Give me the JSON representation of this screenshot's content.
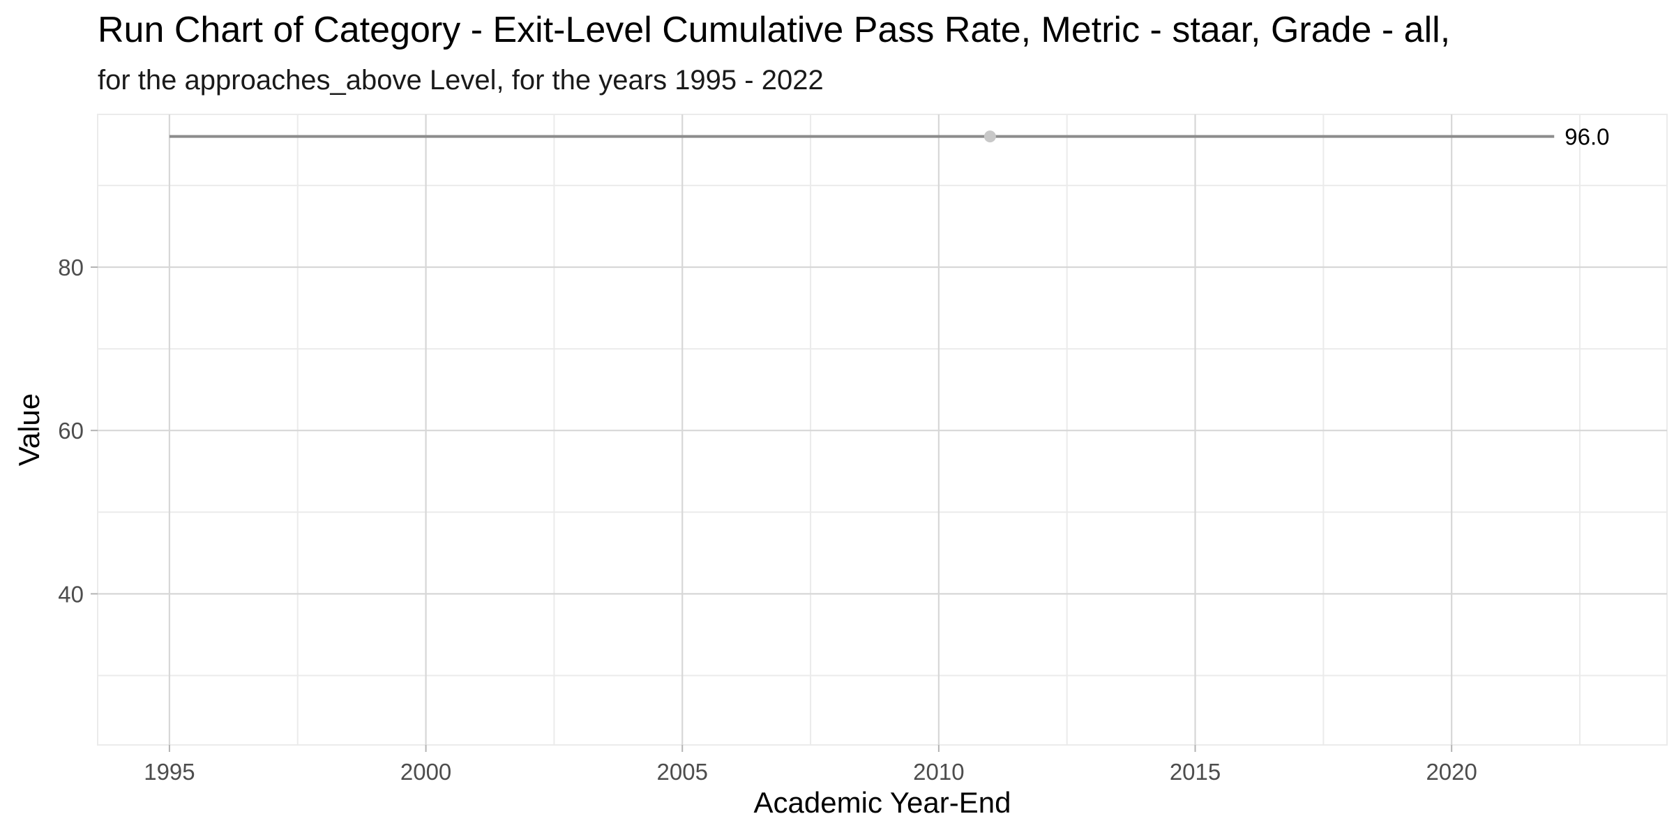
{
  "chart_data": {
    "type": "line",
    "title": "Run Chart of Category - Exit-Level Cumulative Pass Rate, Metric - staar, Grade - all,",
    "subtitle": "for the approaches_above Level, for the years 1995 - 2022",
    "xlabel": "Academic Year-End",
    "ylabel": "Value",
    "xlim": [
      1993.6,
      2024.2
    ],
    "ylim": [
      21.5,
      98.7
    ],
    "x_ticks": [
      1995,
      2000,
      2005,
      2010,
      2015,
      2020
    ],
    "x_tick_labels": [
      "1995",
      "2000",
      "2005",
      "2010",
      "2015",
      "2020"
    ],
    "y_ticks": [
      40,
      60,
      80
    ],
    "y_tick_labels": [
      "40",
      "60",
      "80"
    ],
    "x_minor_ticks": [
      1997.5,
      2002.5,
      2007.5,
      2012.5,
      2017.5,
      2022.5
    ],
    "y_minor_ticks": [
      30,
      50,
      70,
      90
    ],
    "grid": true,
    "series": [
      {
        "name": "",
        "x": [
          1995,
          2022
        ],
        "values": [
          96.0,
          96.0
        ],
        "color": "#8c8c8c"
      }
    ],
    "points": [
      {
        "x": 2011,
        "y": 96.0,
        "color": "#c8c8c8"
      }
    ],
    "annotations": [
      {
        "x": 2022,
        "y": 96.0,
        "text": "96.0"
      }
    ]
  }
}
